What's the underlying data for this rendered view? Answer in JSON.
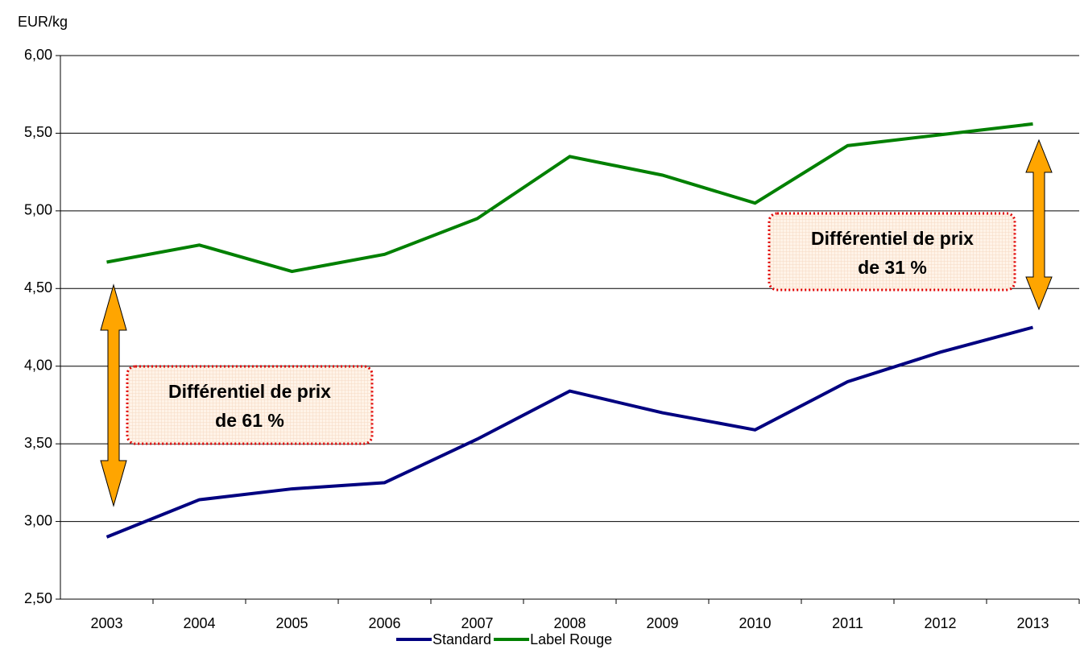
{
  "chart_data": {
    "type": "line",
    "y_axis_label": "EUR/kg",
    "categories": [
      "2003",
      "2004",
      "2005",
      "2006",
      "2007",
      "2008",
      "2009",
      "2010",
      "2011",
      "2012",
      "2013"
    ],
    "series": [
      {
        "name": "Standard",
        "color": "#000080",
        "values": [
          2.9,
          3.14,
          3.21,
          3.25,
          3.53,
          3.84,
          3.7,
          3.59,
          3.9,
          4.09,
          4.25
        ]
      },
      {
        "name": "Label Rouge",
        "color": "#008000",
        "values": [
          4.67,
          4.78,
          4.61,
          4.72,
          4.95,
          5.35,
          5.23,
          5.05,
          5.42,
          5.49,
          5.56
        ]
      }
    ],
    "ylim": [
      2.5,
      6.0
    ],
    "yticks": [
      {
        "value": 2.5,
        "label": "2,50"
      },
      {
        "value": 3.0,
        "label": "3,00"
      },
      {
        "value": 3.5,
        "label": "3,50"
      },
      {
        "value": 4.0,
        "label": "4,00"
      },
      {
        "value": 4.5,
        "label": "4,50"
      },
      {
        "value": 5.0,
        "label": "5,00"
      },
      {
        "value": 5.5,
        "label": "5,50"
      },
      {
        "value": 6.0,
        "label": "6,00"
      }
    ],
    "grid": true,
    "legend": "bottom",
    "annotations": [
      {
        "lines": [
          "Différentiel de prix",
          "de 61 %"
        ]
      },
      {
        "lines": [
          "Différentiel de prix",
          "de 31 %"
        ]
      }
    ]
  }
}
